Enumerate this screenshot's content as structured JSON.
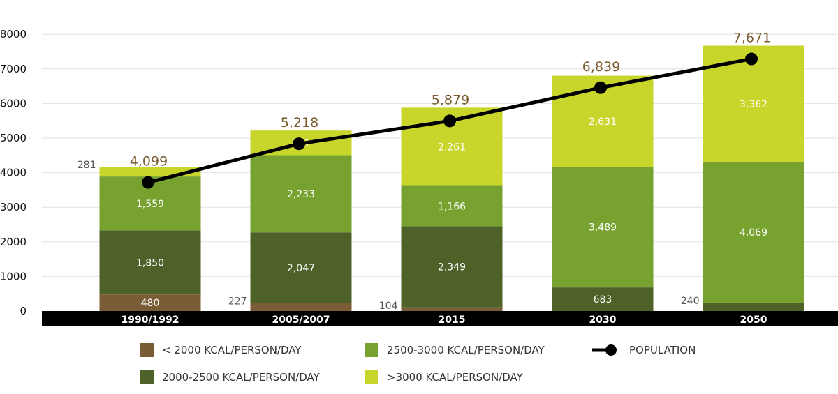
{
  "chart_data": {
    "type": "bar",
    "stacked": true,
    "categories": [
      "1990/1992",
      "2005/2007",
      "2015",
      "2030",
      "2050"
    ],
    "series": [
      {
        "name": "< 2000 KCAL/PERSON/DAY",
        "values": [
          480,
          227,
          104,
          0,
          0
        ],
        "color": "#7a5c36"
      },
      {
        "name": "2000-2500 KCAL/PERSON/DAY",
        "values": [
          1850,
          2047,
          2349,
          683,
          240
        ],
        "color": "#4e6128"
      },
      {
        "name": "2500-3000 KCAL/PERSON/DAY",
        "values": [
          1559,
          2233,
          1166,
          3489,
          4069
        ],
        "color": "#77a22f"
      },
      {
        "name": ">3000 KCAL/PERSON/DAY",
        "values": [
          281,
          711,
          2261,
          2631,
          3362
        ],
        "color": "#c8d52a"
      }
    ],
    "line_series": {
      "name": "POPULATION",
      "values": [
        4099,
        5218,
        5879,
        6839,
        7671
      ],
      "color": "#000000",
      "label_color": "#7a5c2e"
    },
    "y_ticks": [
      "0",
      "1000",
      "2000",
      "3000",
      "4000",
      "5000",
      "6000",
      "7000",
      "8000"
    ],
    "ylim": [
      0,
      8000
    ],
    "grid": true,
    "legend_position": "bottom",
    "axis_band_color": "#000000"
  }
}
